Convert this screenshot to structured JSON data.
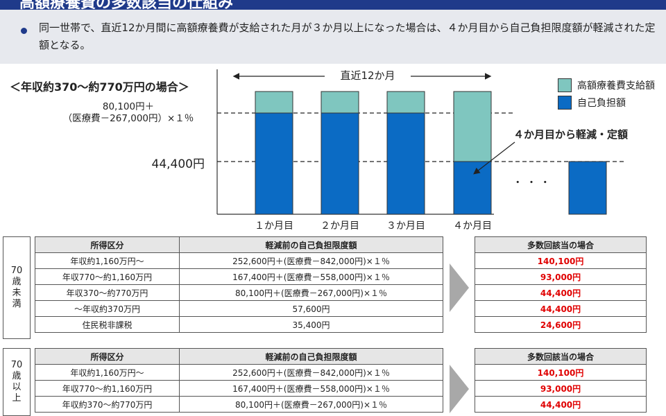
{
  "header": {
    "title": "高額療養費の多数該当の仕組み"
  },
  "description": "同一世帯で、直近12か月間に高額療養費が支給された月が３か月以上になった場合は、４か月目から自己負担限度額が軽減された定額となる。",
  "illustration": {
    "case_title": "＜年収約370～約770万円の場合＞",
    "formula_line1": "80,100円＋",
    "formula_line2": "（医療費－267,000円）×１％",
    "level_label": "44,400円",
    "period_label": "直近12か月",
    "legend": [
      {
        "label": "高額療養費支給額",
        "color": "#7fc6bf"
      },
      {
        "label": "自己負担額",
        "color": "#0b6bc4"
      }
    ],
    "callout": "４か月目から軽減・定額",
    "ellipsis": "・ ・ ・",
    "months": [
      "１か月目",
      "２か月目",
      "３か月目",
      "４か月目"
    ]
  },
  "tables": {
    "headers": {
      "category": "所得区分",
      "before": "軽減前の自己負担限度額",
      "after": "多数回該当の場合"
    },
    "under70": {
      "group_label": [
        "70",
        "歳",
        "未",
        "満"
      ],
      "rows": [
        {
          "category": "年収約1,160万円～",
          "before": "252,600円＋(医療費－842,000円)×１％",
          "after": "140,100円"
        },
        {
          "category": "年収770～約1,160万円",
          "before": "167,400円＋(医療費－558,000円)×１％",
          "after": "93,000円"
        },
        {
          "category": "年収370～約770万円",
          "before": "80,100円＋(医療費－267,000円)×１％",
          "after": "44,400円"
        },
        {
          "category": "～年収約370万円",
          "before": "57,600円",
          "after": "44,400円"
        },
        {
          "category": "住民税非課税",
          "before": "35,400円",
          "after": "24,600円"
        }
      ]
    },
    "over70": {
      "group_label": [
        "70",
        "歳",
        "以",
        "上"
      ],
      "rows": [
        {
          "category": "年収約1,160万円～",
          "before": "252,600円＋(医療費－842,000円)×１％",
          "after": "140,100円"
        },
        {
          "category": "年収770～約1,160万円",
          "before": "167,400円＋(医療費－558,000円)×１％",
          "after": "93,000円"
        },
        {
          "category": "年収約370～約770万円",
          "before": "80,100円＋(医療費－267,000円)×１％",
          "after": "44,400円"
        }
      ]
    }
  }
}
